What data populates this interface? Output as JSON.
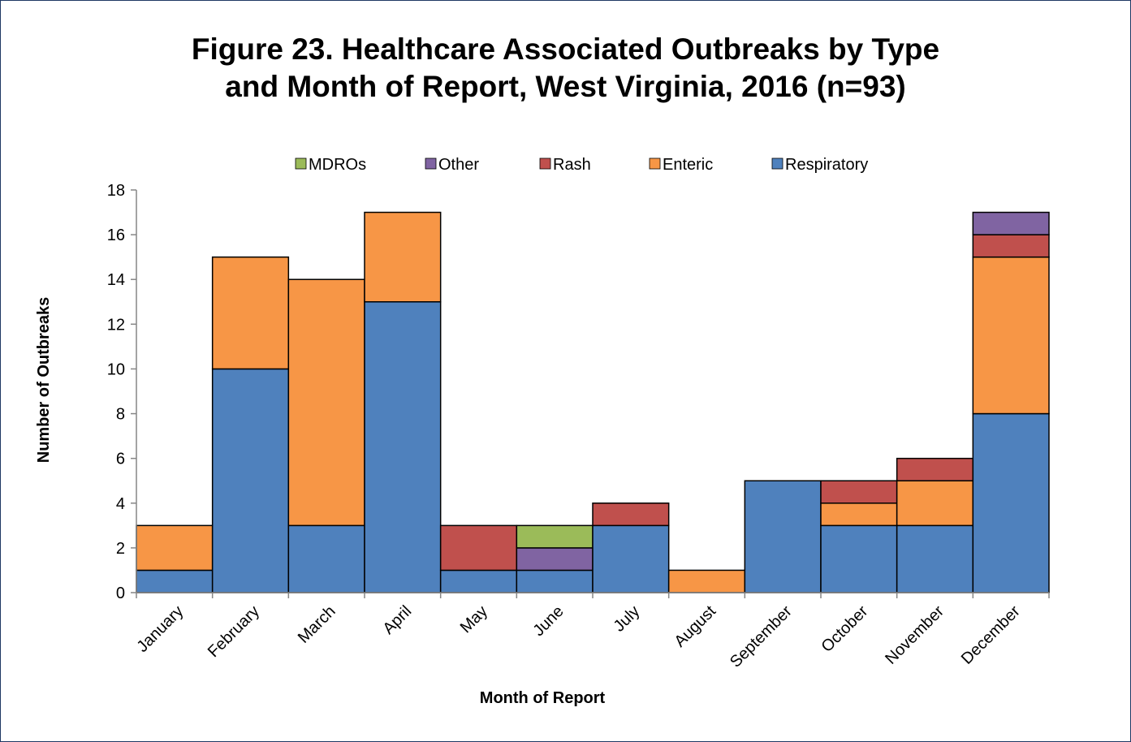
{
  "chart_data": {
    "type": "bar",
    "stacked": true,
    "title_line1": "Figure 23. Healthcare Associated Outbreaks by Type",
    "title_line2": "and Month of Report, West Virginia, 2016 (n=93)",
    "xlabel": "Month of Report",
    "ylabel": "Number of Outbreaks",
    "ylim": [
      0,
      18
    ],
    "yticks": [
      0,
      2,
      4,
      6,
      8,
      10,
      12,
      14,
      16,
      18
    ],
    "grid": false,
    "legend_position": "top",
    "categories": [
      "January",
      "February",
      "March",
      "April",
      "May",
      "June",
      "July",
      "August",
      "September",
      "October",
      "November",
      "December"
    ],
    "series": [
      {
        "name": "Respiratory",
        "color": "#4f81bd",
        "values": [
          1,
          10,
          3,
          13,
          1,
          1,
          3,
          0,
          5,
          3,
          3,
          8
        ]
      },
      {
        "name": "Enteric",
        "color": "#f79646",
        "values": [
          2,
          5,
          11,
          4,
          0,
          0,
          0,
          1,
          0,
          1,
          2,
          7
        ]
      },
      {
        "name": "Rash",
        "color": "#c0504d",
        "values": [
          0,
          0,
          0,
          0,
          2,
          0,
          1,
          0,
          0,
          1,
          1,
          1
        ]
      },
      {
        "name": "Other",
        "color": "#8064a2",
        "values": [
          0,
          0,
          0,
          0,
          0,
          1,
          0,
          0,
          0,
          0,
          0,
          1
        ]
      },
      {
        "name": "MDROs",
        "color": "#9bbb59",
        "values": [
          0,
          0,
          0,
          0,
          0,
          1,
          0,
          0,
          0,
          0,
          0,
          0
        ]
      }
    ],
    "legend_order": [
      "MDROs",
      "Other",
      "Rash",
      "Enteric",
      "Respiratory"
    ]
  }
}
